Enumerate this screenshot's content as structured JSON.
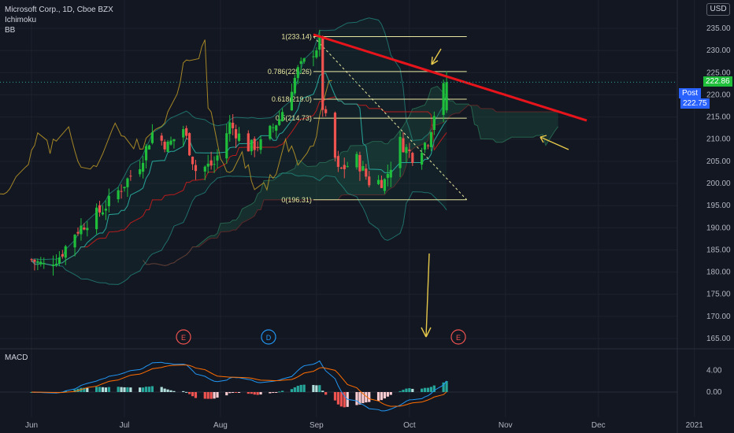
{
  "legend": {
    "symbol_line": "Microsoft Corp., 1D, Cboe BZX",
    "indicator1": "Ichimoku",
    "indicator2": "BB"
  },
  "currency_button": "USD",
  "price_tags": {
    "last": "222.86",
    "post_label": "Post",
    "post_value": "222.75"
  },
  "macd_label": "MACD",
  "events": [
    "E",
    "D",
    "E"
  ],
  "fib_labels": [
    "1(233.14)",
    "0.786(225.26)",
    "0.618(219.0)",
    "0.5(214.73)",
    "0(196.31)"
  ],
  "colors": {
    "background": "#131722",
    "up": "#26a69a",
    "up_bright": "#1fbf3c",
    "down": "#ef5350",
    "fib": "#e8e8a0",
    "trendline": "#e8141c",
    "arrows": "#e6c84a"
  },
  "chart_data": [
    {
      "type": "candlestick",
      "title": "Microsoft Corp., 1D, Cboe BZX",
      "x_tick_labels": [
        "Jun",
        "Jul",
        "Aug",
        "Sep",
        "Oct",
        "Nov",
        "Dec",
        "2021"
      ],
      "y_tick_labels": [
        "165.00",
        "170.00",
        "175.00",
        "180.00",
        "185.00",
        "190.00",
        "195.00",
        "200.00",
        "205.00",
        "210.00",
        "215.00",
        "220.00",
        "225.00",
        "230.00",
        "235.00"
      ],
      "ylim": [
        162,
        238
      ],
      "close_series": [
        {
          "date": "2020-06-01",
          "close": 182.8
        },
        {
          "date": "2020-06-05",
          "close": 181.5
        },
        {
          "date": "2020-06-10",
          "close": 183.5
        },
        {
          "date": "2020-06-15",
          "close": 188.9
        },
        {
          "date": "2020-06-19",
          "close": 191.4
        },
        {
          "date": "2020-06-24",
          "close": 194.2
        },
        {
          "date": "2020-06-30",
          "close": 199.1
        },
        {
          "date": "2020-07-06",
          "close": 204.4
        },
        {
          "date": "2020-07-10",
          "close": 211.4
        },
        {
          "date": "2020-07-15",
          "close": 208.5
        },
        {
          "date": "2020-07-20",
          "close": 212.4
        },
        {
          "date": "2020-07-24",
          "close": 203.0
        },
        {
          "date": "2020-07-30",
          "close": 204.4
        },
        {
          "date": "2020-08-04",
          "close": 213.3
        },
        {
          "date": "2020-08-10",
          "close": 208.2
        },
        {
          "date": "2020-08-14",
          "close": 208.9
        },
        {
          "date": "2020-08-20",
          "close": 214.6
        },
        {
          "date": "2020-08-26",
          "close": 225.5
        },
        {
          "date": "2020-09-02",
          "close": 231.6
        },
        {
          "date": "2020-09-03",
          "close": 217.3
        },
        {
          "date": "2020-09-08",
          "close": 202.7
        },
        {
          "date": "2020-09-14",
          "close": 205.4
        },
        {
          "date": "2020-09-18",
          "close": 200.4
        },
        {
          "date": "2020-09-23",
          "close": 200.6
        },
        {
          "date": "2020-09-28",
          "close": 209.4
        },
        {
          "date": "2020-10-02",
          "close": 206.2
        },
        {
          "date": "2020-10-07",
          "close": 209.8
        },
        {
          "date": "2020-10-09",
          "close": 215.8
        },
        {
          "date": "2020-10-12",
          "close": 221.4
        },
        {
          "date": "2020-10-13",
          "close": 222.86
        }
      ],
      "last_price": 222.86,
      "post_market_price": 222.75,
      "indicators": [
        "Ichimoku",
        "BB"
      ]
    },
    {
      "type": "fibonacci_retracement",
      "levels": [
        {
          "ratio": 1,
          "price": 233.14
        },
        {
          "ratio": 0.786,
          "price": 225.26
        },
        {
          "ratio": 0.618,
          "price": 219.0
        },
        {
          "ratio": 0.5,
          "price": 214.73
        },
        {
          "ratio": 0,
          "price": 196.31
        }
      ]
    },
    {
      "type": "bar",
      "title": "MACD",
      "y_tick_labels": [
        "4.00",
        "0.00"
      ]
    }
  ]
}
